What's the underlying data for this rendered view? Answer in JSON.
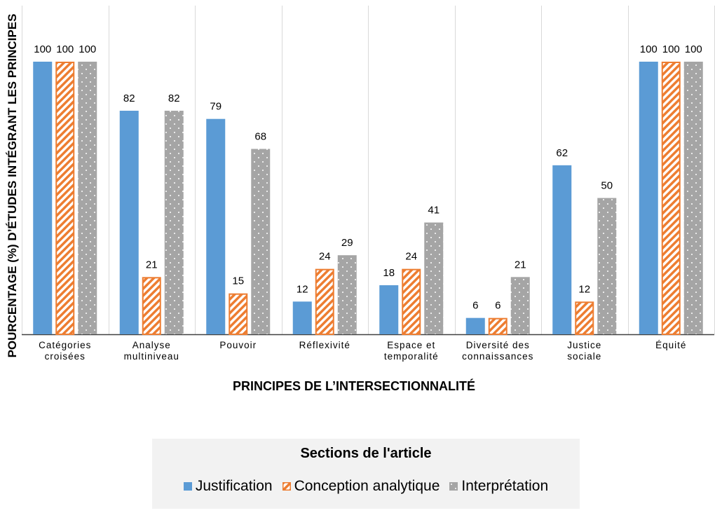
{
  "chart_data": {
    "type": "bar",
    "title": "",
    "ylabel": "POURCENTAGE (%) D’ÉTUDES INTÉGRANT LES PRINCIPES",
    "xlabel": "PRINCIPES DE L’INTERSECTIONNALITÉ",
    "ylim": [
      0,
      100
    ],
    "categories": [
      [
        "Catégories",
        "croisées"
      ],
      [
        "Analyse",
        "multiniveau"
      ],
      [
        "Pouvoir"
      ],
      [
        "Réflexivité"
      ],
      [
        "Espace et",
        "temporalité"
      ],
      [
        "Diversité des",
        "connaissances"
      ],
      [
        "Justice",
        "sociale"
      ],
      [
        "Équité"
      ]
    ],
    "series": [
      {
        "name": "Justification",
        "values": [
          100,
          82,
          79,
          12,
          18,
          6,
          62,
          100
        ]
      },
      {
        "name": "Conception analytique",
        "values": [
          100,
          21,
          15,
          24,
          24,
          6,
          12,
          100
        ]
      },
      {
        "name": "Interprétation",
        "values": [
          100,
          82,
          68,
          29,
          41,
          21,
          50,
          100
        ]
      }
    ],
    "colors": {
      "Justification": "#5b9bd5",
      "Conception analytique": "#ed7d31",
      "Interprétation": "#a5a5a5"
    },
    "patterns": {
      "Justification": "solid",
      "Conception analytique": "diagonal-stripes",
      "Interprétation": "dots"
    },
    "data_labels": true,
    "legend": {
      "title": "Sections de l'article",
      "placement": "bottom-center"
    }
  }
}
